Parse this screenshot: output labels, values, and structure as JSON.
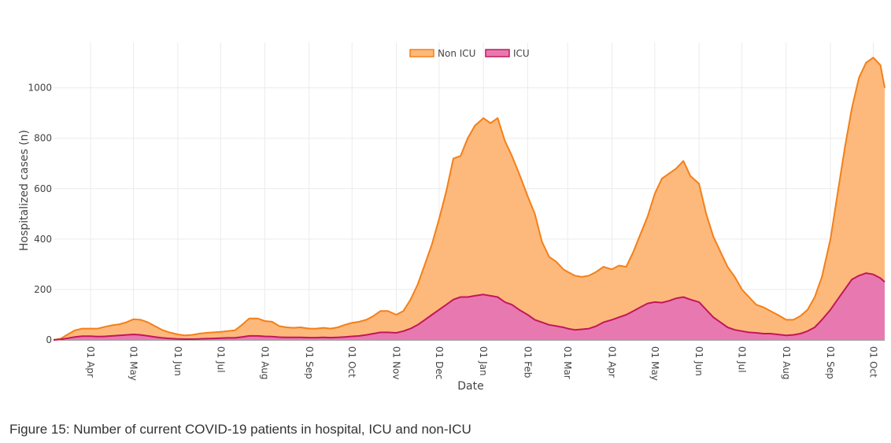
{
  "figure": {
    "caption": "Figure 15: Number of current COVID-19 patients in hospital, ICU and non-ICU"
  },
  "chart_data": {
    "type": "area",
    "stacking": "stacked",
    "title": "",
    "xlabel": "Date",
    "ylabel": "Hospitalized cases (n)",
    "x_unit": "days since 2020-03-01",
    "xlim": [
      5,
      587
    ],
    "ylim": [
      0,
      1180
    ],
    "y_ticks": [
      0,
      200,
      400,
      600,
      800,
      1000
    ],
    "x_ticks": [
      {
        "day": 31,
        "label": "01 Apr"
      },
      {
        "day": 61,
        "label": "01 May"
      },
      {
        "day": 92,
        "label": "01 Jun"
      },
      {
        "day": 122,
        "label": "01 Jul"
      },
      {
        "day": 153,
        "label": "01 Aug"
      },
      {
        "day": 184,
        "label": "01 Sep"
      },
      {
        "day": 214,
        "label": "01 Oct"
      },
      {
        "day": 245,
        "label": "01 Nov"
      },
      {
        "day": 275,
        "label": "01 Dec"
      },
      {
        "day": 306,
        "label": "01 Jan"
      },
      {
        "day": 337,
        "label": "01 Feb"
      },
      {
        "day": 365,
        "label": "01 Mar"
      },
      {
        "day": 396,
        "label": "01 Apr"
      },
      {
        "day": 426,
        "label": "01 May"
      },
      {
        "day": 457,
        "label": "01 Jun"
      },
      {
        "day": 487,
        "label": "01 Jul"
      },
      {
        "day": 518,
        "label": "01 Aug"
      },
      {
        "day": 549,
        "label": "01 Sep"
      },
      {
        "day": 579,
        "label": "01 Oct"
      }
    ],
    "grid": true,
    "legend": {
      "placement": "top-center",
      "orientation": "horizontal"
    },
    "x": [
      5,
      10,
      15,
      20,
      25,
      31,
      36,
      41,
      46,
      51,
      56,
      61,
      66,
      71,
      76,
      81,
      86,
      92,
      97,
      102,
      107,
      112,
      117,
      122,
      127,
      132,
      137,
      142,
      148,
      153,
      158,
      163,
      168,
      173,
      178,
      184,
      189,
      194,
      199,
      204,
      209,
      214,
      219,
      224,
      229,
      234,
      239,
      245,
      250,
      255,
      260,
      265,
      270,
      275,
      280,
      285,
      290,
      295,
      300,
      306,
      311,
      316,
      321,
      326,
      331,
      337,
      342,
      347,
      352,
      357,
      362,
      365,
      370,
      375,
      380,
      385,
      390,
      396,
      401,
      406,
      411,
      416,
      421,
      426,
      431,
      436,
      441,
      446,
      451,
      457,
      462,
      467,
      472,
      477,
      482,
      487,
      492,
      497,
      502,
      507,
      512,
      518,
      523,
      528,
      533,
      538,
      543,
      549,
      554,
      559,
      564,
      569,
      574,
      579,
      584,
      587
    ],
    "series": [
      {
        "name": "Non ICU",
        "kind": "total",
        "color": "#F57F17",
        "fill": "#FDB97C",
        "values": [
          0,
          5,
          22,
          38,
          45,
          45,
          45,
          52,
          58,
          62,
          70,
          82,
          80,
          70,
          55,
          40,
          30,
          22,
          18,
          20,
          25,
          28,
          30,
          32,
          35,
          38,
          60,
          85,
          85,
          75,
          72,
          55,
          50,
          48,
          50,
          45,
          45,
          48,
          45,
          50,
          60,
          68,
          72,
          80,
          95,
          115,
          115,
          100,
          115,
          160,
          220,
          300,
          380,
          480,
          590,
          720,
          730,
          800,
          850,
          880,
          860,
          880,
          790,
          730,
          660,
          570,
          500,
          390,
          330,
          310,
          280,
          270,
          255,
          250,
          255,
          270,
          290,
          280,
          295,
          290,
          350,
          420,
          490,
          580,
          640,
          660,
          680,
          710,
          650,
          620,
          500,
          410,
          350,
          290,
          250,
          200,
          170,
          140,
          130,
          115,
          100,
          80,
          80,
          95,
          120,
          170,
          250,
          400,
          580,
          760,
          920,
          1040,
          1100,
          1120,
          1090,
          1000
        ]
      },
      {
        "name": "ICU",
        "kind": "component",
        "color": "#C2185B",
        "fill": "#E879B0",
        "values": [
          0,
          2,
          7,
          12,
          15,
          15,
          13,
          14,
          16,
          18,
          20,
          22,
          20,
          16,
          12,
          8,
          6,
          4,
          3,
          3,
          4,
          5,
          6,
          7,
          8,
          8,
          12,
          16,
          16,
          14,
          13,
          11,
          10,
          10,
          10,
          9,
          9,
          10,
          9,
          10,
          12,
          14,
          16,
          20,
          25,
          30,
          30,
          28,
          35,
          45,
          60,
          80,
          100,
          120,
          140,
          160,
          170,
          170,
          175,
          180,
          175,
          170,
          150,
          140,
          120,
          100,
          80,
          70,
          60,
          55,
          50,
          45,
          40,
          42,
          45,
          55,
          70,
          80,
          90,
          100,
          115,
          130,
          145,
          150,
          148,
          155,
          165,
          170,
          160,
          150,
          120,
          90,
          70,
          50,
          40,
          35,
          30,
          28,
          25,
          25,
          22,
          18,
          20,
          25,
          35,
          50,
          80,
          120,
          160,
          200,
          240,
          255,
          265,
          260,
          245,
          230
        ]
      }
    ]
  }
}
